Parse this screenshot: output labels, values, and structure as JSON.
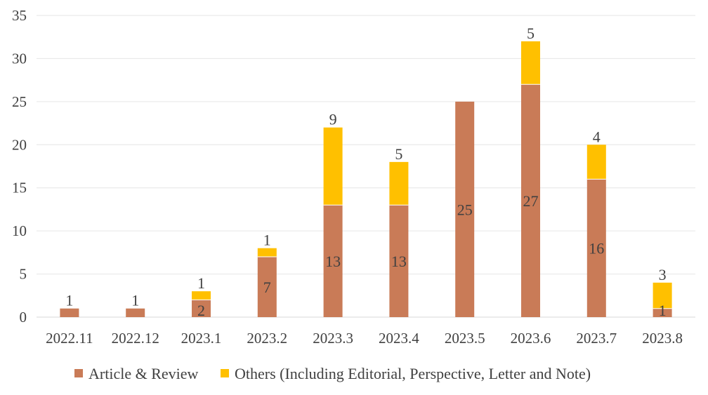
{
  "chart_data": {
    "type": "bar",
    "stacked": true,
    "categories": [
      "2022.11",
      "2022.12",
      "2023.1",
      "2023.2",
      "2023.3",
      "2023.4",
      "2023.5",
      "2023.6",
      "2023.7",
      "2023.8"
    ],
    "series": [
      {
        "name": "Article & Review",
        "color": "#C97B57",
        "values": [
          1,
          1,
          2,
          7,
          13,
          13,
          25,
          27,
          16,
          1
        ],
        "labels": [
          "1",
          "1",
          "2",
          "7",
          "13",
          "13",
          "25",
          "27",
          "16",
          "1"
        ]
      },
      {
        "name": "Others (Including Editorial, Perspective, Letter and Note)",
        "color": "#FFC000",
        "values": [
          0,
          0,
          1,
          1,
          9,
          5,
          0,
          5,
          4,
          3
        ],
        "labels": [
          "",
          "",
          "1",
          "1",
          "9",
          "5",
          "",
          "5",
          "4",
          "3"
        ]
      }
    ],
    "ylim": [
      0,
      35
    ],
    "yticks": [
      "0",
      "5",
      "10",
      "15",
      "20",
      "25",
      "30",
      "35"
    ],
    "title": "",
    "xlabel": "",
    "ylabel": "",
    "grid": true,
    "legend": "bottom"
  }
}
